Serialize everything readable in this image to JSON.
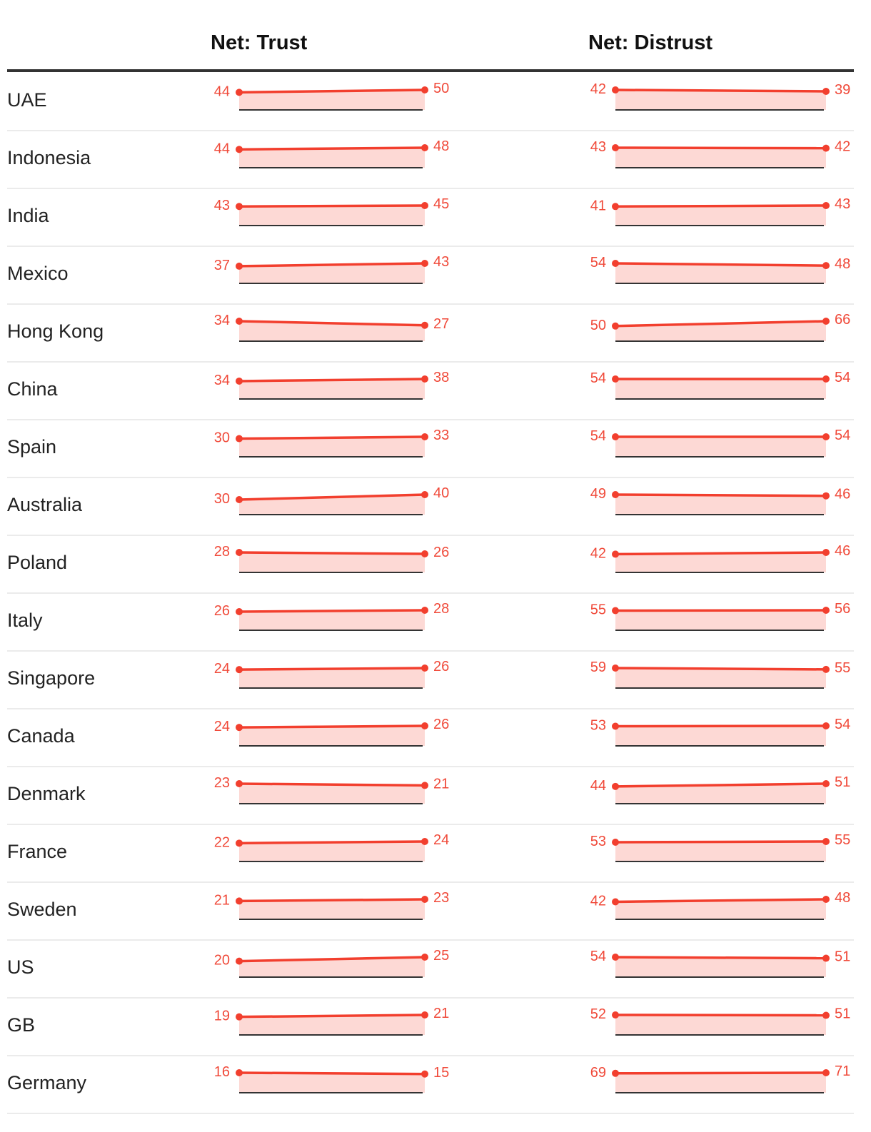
{
  "chart_data": {
    "type": "line",
    "title": "",
    "panels": [
      "Net: Trust",
      "Net: Distrust"
    ],
    "colors": {
      "line": "#f23f2e",
      "fill": "#fdd9d5",
      "baseline": "#333333"
    },
    "rows": [
      {
        "country": "UAE",
        "trust": [
          44,
          50
        ],
        "distrust": [
          42,
          39
        ]
      },
      {
        "country": "Indonesia",
        "trust": [
          44,
          48
        ],
        "distrust": [
          43,
          42
        ]
      },
      {
        "country": "India",
        "trust": [
          43,
          45
        ],
        "distrust": [
          41,
          43
        ]
      },
      {
        "country": "Mexico",
        "trust": [
          37,
          43
        ],
        "distrust": [
          54,
          48
        ]
      },
      {
        "country": "Hong Kong",
        "trust": [
          34,
          27
        ],
        "distrust": [
          50,
          66
        ]
      },
      {
        "country": "China",
        "trust": [
          34,
          38
        ],
        "distrust": [
          54,
          54
        ]
      },
      {
        "country": "Spain",
        "trust": [
          30,
          33
        ],
        "distrust": [
          54,
          54
        ]
      },
      {
        "country": "Australia",
        "trust": [
          30,
          40
        ],
        "distrust": [
          49,
          46
        ]
      },
      {
        "country": "Poland",
        "trust": [
          28,
          26
        ],
        "distrust": [
          42,
          46
        ]
      },
      {
        "country": "Italy",
        "trust": [
          26,
          28
        ],
        "distrust": [
          55,
          56
        ]
      },
      {
        "country": "Singapore",
        "trust": [
          24,
          26
        ],
        "distrust": [
          59,
          55
        ]
      },
      {
        "country": "Canada",
        "trust": [
          24,
          26
        ],
        "distrust": [
          53,
          54
        ]
      },
      {
        "country": "Denmark",
        "trust": [
          23,
          21
        ],
        "distrust": [
          44,
          51
        ]
      },
      {
        "country": "France",
        "trust": [
          22,
          24
        ],
        "distrust": [
          53,
          55
        ]
      },
      {
        "country": "Sweden",
        "trust": [
          21,
          23
        ],
        "distrust": [
          42,
          48
        ]
      },
      {
        "country": "US",
        "trust": [
          20,
          25
        ],
        "distrust": [
          54,
          51
        ]
      },
      {
        "country": "GB",
        "trust": [
          19,
          21
        ],
        "distrust": [
          52,
          51
        ]
      },
      {
        "country": "Germany",
        "trust": [
          16,
          15
        ],
        "distrust": [
          69,
          71
        ]
      }
    ]
  }
}
